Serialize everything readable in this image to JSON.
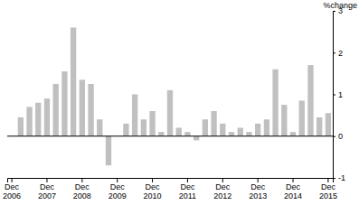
{
  "chart_data": {
    "type": "bar",
    "ylabel": "%change",
    "categories": [
      "Dec 2006",
      null,
      null,
      null,
      "Dec 2007",
      null,
      null,
      null,
      "Dec 2008",
      null,
      null,
      null,
      "Dec 2009",
      null,
      null,
      null,
      "Dec 2010",
      null,
      null,
      null,
      "Dec 2011",
      null,
      null,
      null,
      "Dec 2012",
      null,
      null,
      null,
      "Dec 2013",
      null,
      null,
      null,
      "Dec 2014",
      null,
      null,
      null,
      "Dec 2015"
    ],
    "values": [
      null,
      0.45,
      0.7,
      0.8,
      0.9,
      1.25,
      1.55,
      2.6,
      1.35,
      1.25,
      0.4,
      -0.7,
      0.0,
      0.3,
      1.0,
      0.4,
      0.6,
      0.1,
      1.1,
      0.2,
      0.1,
      -0.1,
      0.4,
      0.6,
      0.3,
      0.1,
      0.2,
      0.1,
      0.3,
      0.4,
      1.6,
      0.75,
      0.1,
      0.85,
      1.7,
      0.45,
      0.55
    ],
    "color": "#c0c0c0",
    "ylim": [
      -1,
      3
    ],
    "yticks": [
      -1,
      0,
      1,
      2,
      3
    ],
    "grid": false
  }
}
